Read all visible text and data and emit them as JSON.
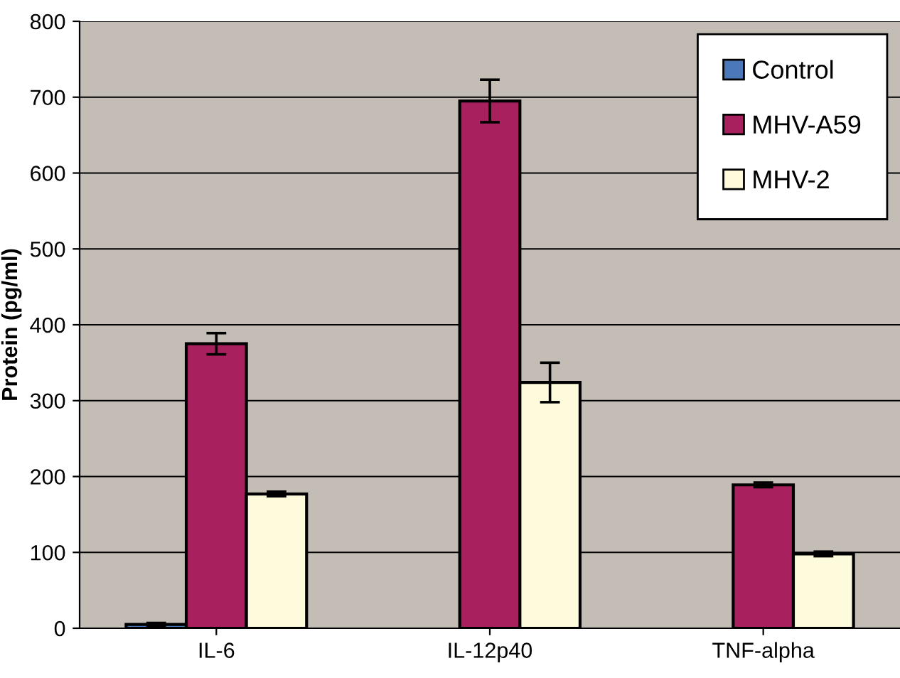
{
  "chart_data": {
    "type": "bar",
    "ylabel": "Protein (pg/ml)",
    "categories": [
      "IL-6",
      "IL-12p40",
      "TNF-alpha"
    ],
    "series": [
      {
        "name": "Control",
        "color": "#4a78b8",
        "values": [
          5,
          null,
          null
        ],
        "errors": [
          2,
          null,
          null
        ]
      },
      {
        "name": "MHV-A59",
        "color": "#a8205e",
        "values": [
          375,
          695,
          189
        ],
        "errors": [
          14,
          28,
          3
        ]
      },
      {
        "name": "MHV-2",
        "color": "#fdfbdc",
        "values": [
          177,
          324,
          98
        ],
        "errors": [
          3,
          26,
          3
        ]
      }
    ],
    "ylim": [
      0,
      800
    ],
    "yticks": [
      0,
      100,
      200,
      300,
      400,
      500,
      600,
      700,
      800
    ],
    "grid": "y",
    "legend": "top right"
  }
}
